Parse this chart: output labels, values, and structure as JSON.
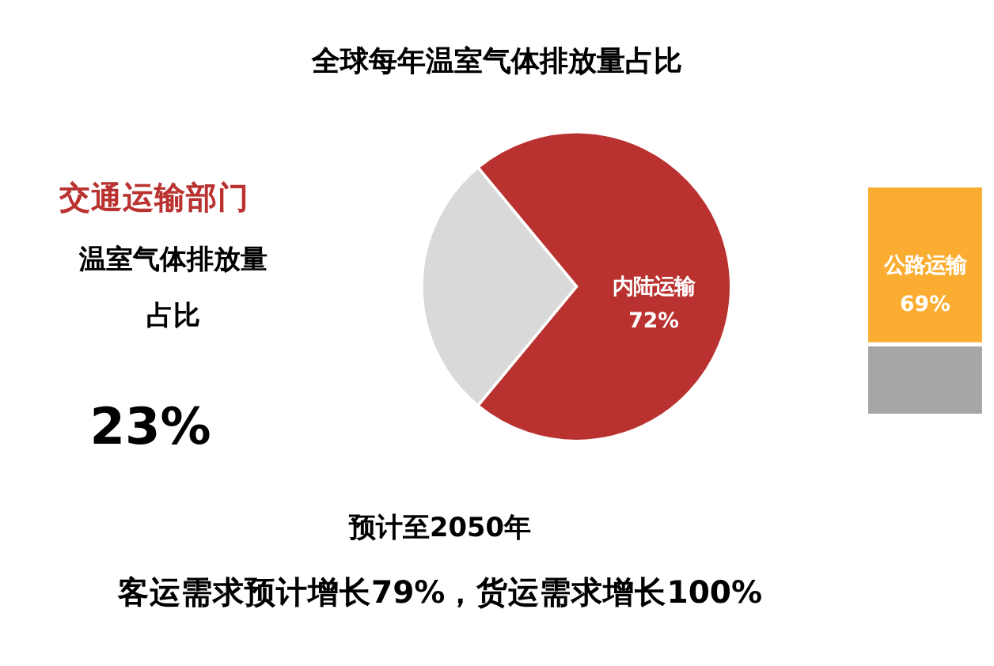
{
  "chart_data": [
    {
      "type": "pie",
      "title": "全球每年温室气体排放量占比",
      "categories": [
        "内陆运输",
        null
      ],
      "values": [
        72,
        28
      ],
      "colors": [
        "#b93230",
        "#d9d9d9"
      ],
      "value_labels": [
        "72%",
        null
      ],
      "legend": false,
      "annotations": [
        "交通运输部门",
        "温室气体排放量占比",
        "23%",
        "预计至2050年",
        "客运需求预计增长79%，货运需求增长100%"
      ]
    },
    {
      "type": "bar",
      "stacked": true,
      "categories": [
        null
      ],
      "ylim": [
        0,
        100
      ],
      "tick_labels": false,
      "legend": false,
      "series": [
        {
          "color": "#a6a6a6",
          "values": [
            31
          ]
        },
        {
          "name": "公路运输",
          "color": "#fbad31",
          "values": [
            69
          ],
          "value_labels": [
            "69%"
          ]
        }
      ]
    }
  ]
}
